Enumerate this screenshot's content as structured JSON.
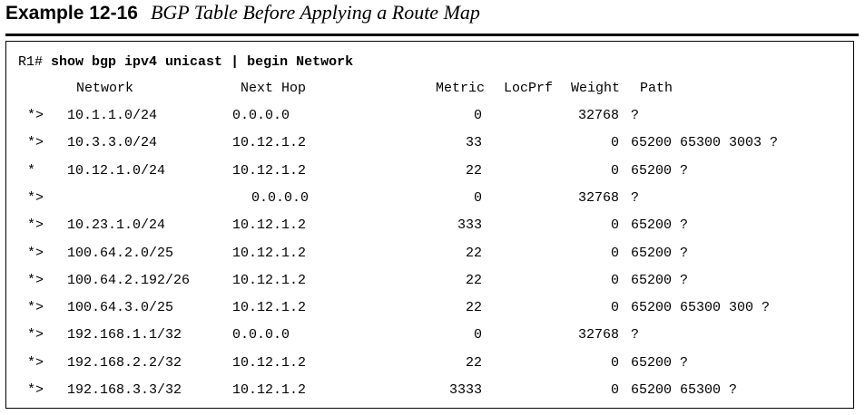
{
  "caption": {
    "label": "Example 12-16",
    "title": "BGP Table Before Applying a Route Map"
  },
  "command": {
    "prompt": "R1#",
    "text": "show bgp ipv4 unicast | begin Network"
  },
  "table": {
    "headers": {
      "network": "Network",
      "next_hop": "Next Hop",
      "metric": "Metric",
      "locprf": "LocPrf",
      "weight": "Weight",
      "path": "Path"
    },
    "rows": [
      {
        "status": "*>",
        "network": "10.1.1.0/24",
        "next_hop": "0.0.0.0",
        "metric": "0",
        "weight": "32768",
        "path": "?"
      },
      {
        "status": "*>",
        "network": "10.3.3.0/24",
        "next_hop": "10.12.1.2",
        "metric": "33",
        "weight": "0",
        "path": "65200 65300 3003 ?"
      },
      {
        "status": "*",
        "network": "10.12.1.0/24",
        "next_hop": "10.12.1.2",
        "metric": "22",
        "weight": "0",
        "path": "65200 ?"
      },
      {
        "status": "*>",
        "network": "",
        "next_hop": "0.0.0.0",
        "metric": "0",
        "weight": "32768",
        "path": "?"
      },
      {
        "status": "*>",
        "network": "10.23.1.0/24",
        "next_hop": "10.12.1.2",
        "metric": "333",
        "weight": "0",
        "path": "65200 ?"
      },
      {
        "status": "*>",
        "network": "100.64.2.0/25",
        "next_hop": "10.12.1.2",
        "metric": "22",
        "weight": "0",
        "path": "65200 ?"
      },
      {
        "status": "*>",
        "network": "100.64.2.192/26",
        "next_hop": "10.12.1.2",
        "metric": "22",
        "weight": "0",
        "path": "65200 ?"
      },
      {
        "status": "*>",
        "network": "100.64.3.0/25",
        "next_hop": "10.12.1.2",
        "metric": "22",
        "weight": "0",
        "path": "65200 65300 300 ?"
      },
      {
        "status": "*>",
        "network": "192.168.1.1/32",
        "next_hop": "0.0.0.0",
        "metric": "0",
        "weight": "32768",
        "path": "?"
      },
      {
        "status": "*>",
        "network": "192.168.2.2/32",
        "next_hop": "10.12.1.2",
        "metric": "22",
        "weight": "0",
        "path": "65200 ?"
      },
      {
        "status": "*>",
        "network": "192.168.3.3/32",
        "next_hop": "10.12.1.2",
        "metric": "3333",
        "weight": "0",
        "path": "65200 65300 ?"
      }
    ]
  }
}
